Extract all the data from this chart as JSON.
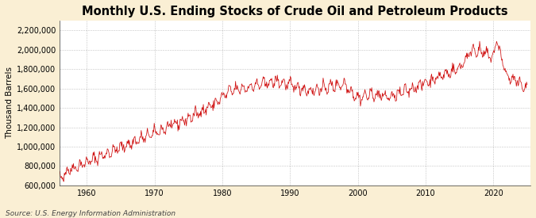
{
  "title": "Monthly U.S. Ending Stocks of Crude Oil and Petroleum Products",
  "ylabel": "Thousand Barrels",
  "source": "Source: U.S. Energy Information Administration",
  "line_color": "#cc0000",
  "background_color": "#faefd4",
  "plot_bg_color": "#ffffff",
  "grid_color": "#888888",
  "ylim": [
    600000,
    2300000
  ],
  "yticks": [
    600000,
    800000,
    1000000,
    1200000,
    1400000,
    1600000,
    1800000,
    2000000,
    2200000
  ],
  "year_start": 1955,
  "year_end": 2025,
  "xticks": [
    1960,
    1970,
    1980,
    1990,
    2000,
    2010,
    2020
  ],
  "title_fontsize": 10.5,
  "label_fontsize": 7.5,
  "tick_fontsize": 7,
  "source_fontsize": 6.5
}
